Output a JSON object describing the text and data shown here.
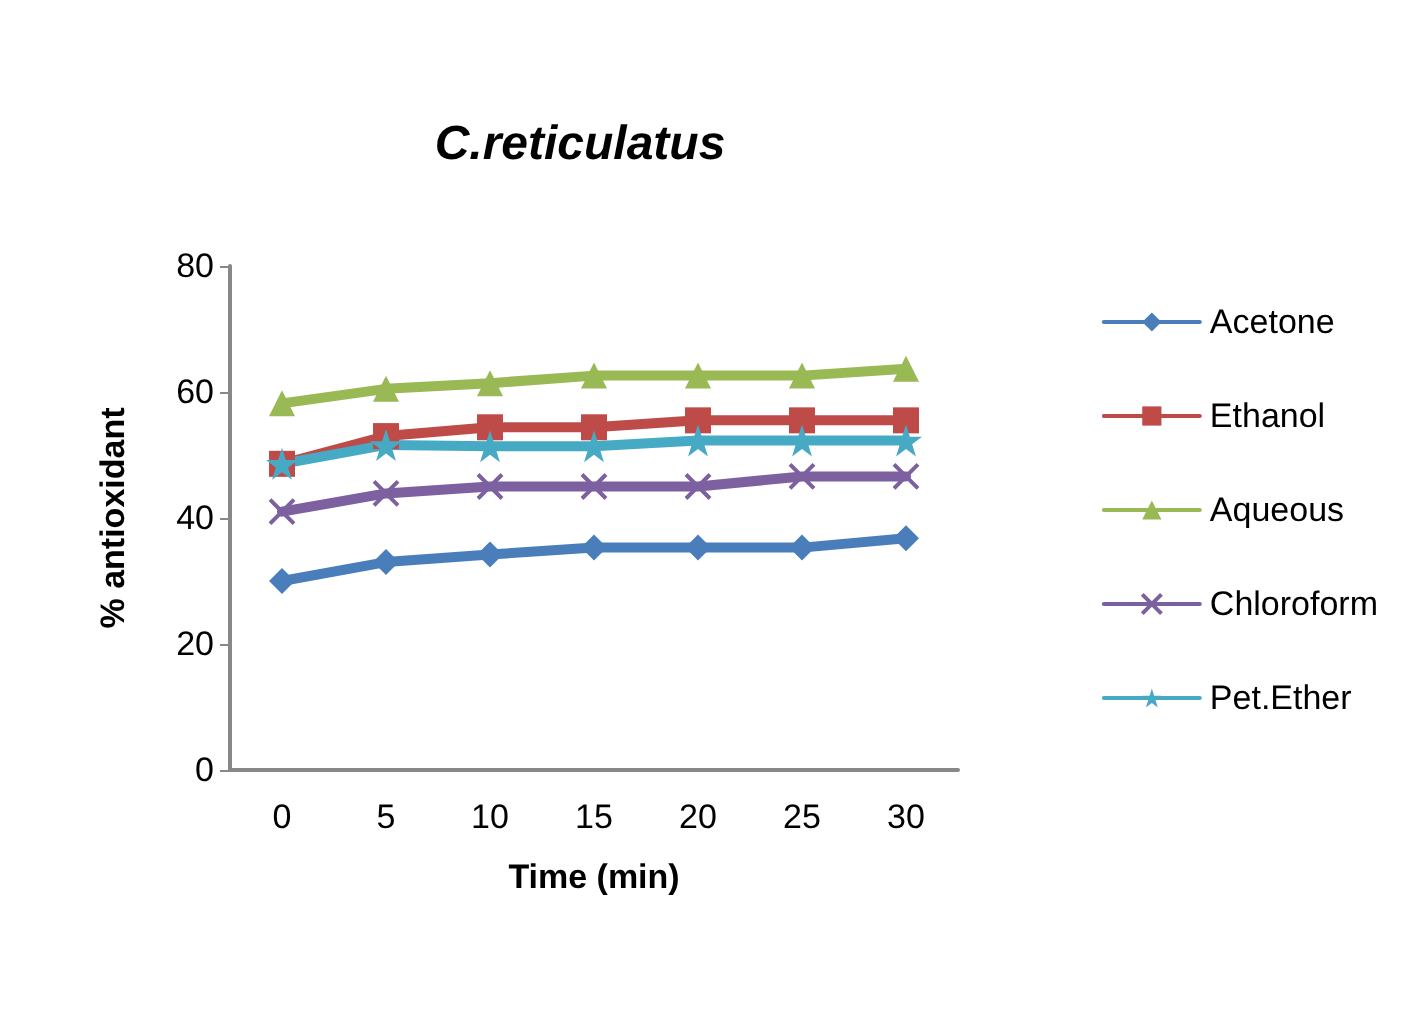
{
  "chart_data": {
    "type": "line",
    "title": "C.reticulatus",
    "xlabel": "Time (min)",
    "ylabel": "% antioxidant",
    "categories": [
      "0",
      "5",
      "10",
      "15",
      "20",
      "25",
      "30"
    ],
    "ylim": [
      0,
      80
    ],
    "yticks": [
      0,
      20,
      40,
      60,
      80
    ],
    "grid": false,
    "legend": "right",
    "series": [
      {
        "name": "Acetone",
        "color": "#4a7ebb",
        "marker": "diamond",
        "values": [
          30,
          33,
          34.2,
          35.3,
          35.3,
          35.3,
          36.8
        ]
      },
      {
        "name": "Ethanol",
        "color": "#be4b48",
        "marker": "square",
        "values": [
          48.6,
          53,
          54.4,
          54.4,
          55.5,
          55.5,
          55.5
        ]
      },
      {
        "name": "Aqueous",
        "color": "#98b954",
        "marker": "triangle",
        "values": [
          58.2,
          60.5,
          61.4,
          62.6,
          62.6,
          62.6,
          63.7
        ]
      },
      {
        "name": "Chloroform",
        "color": "#7d60a0",
        "marker": "cross",
        "values": [
          41,
          43.9,
          45,
          45,
          45,
          46.6,
          46.6
        ]
      },
      {
        "name": "Pet.Ether",
        "color": "#46aac5",
        "marker": "star",
        "values": [
          48.6,
          51.6,
          51.4,
          51.4,
          52.3,
          52.3,
          52.3
        ]
      }
    ]
  }
}
